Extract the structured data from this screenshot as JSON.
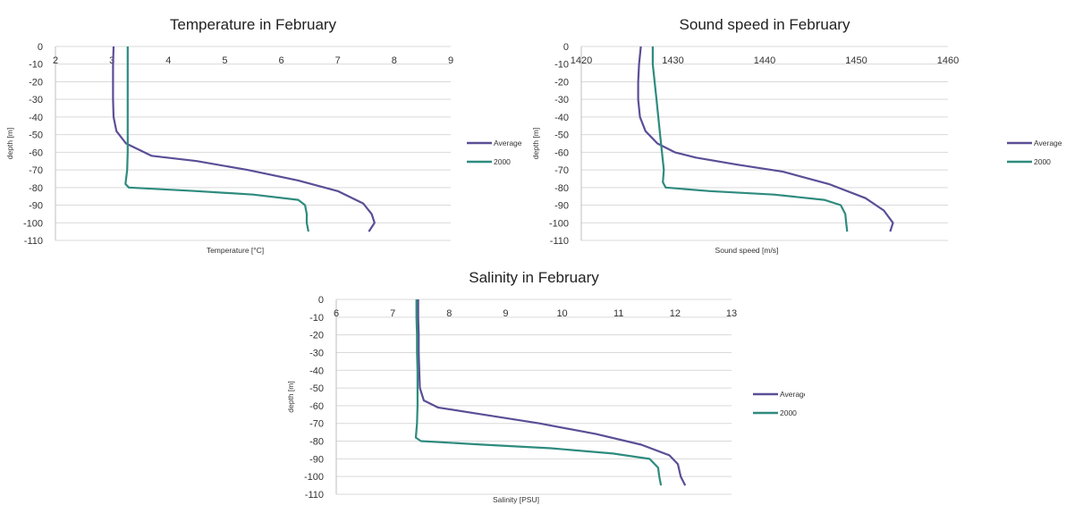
{
  "colors": {
    "average": "#5b4e96",
    "y2000": "#2e8b7e",
    "grid": "#d9d9d9"
  },
  "chart_data": [
    {
      "type": "line",
      "title": "Temperature in February",
      "xlabel": "Temperature [°C]",
      "ylabel": "depth [m]",
      "xlim": [
        2,
        9
      ],
      "ylim": [
        -110,
        0
      ],
      "xticks": [
        "2",
        "3",
        "4",
        "5",
        "6",
        "7",
        "8",
        "9"
      ],
      "yticks": [
        "0",
        "-10",
        "-20",
        "-30",
        "-40",
        "-50",
        "-60",
        "-70",
        "-80",
        "-90",
        "-100",
        "-110"
      ],
      "legend": "right",
      "series": [
        {
          "name": "Average",
          "color": "#5b4e96",
          "points": [
            [
              3.03,
              0
            ],
            [
              3.02,
              -10
            ],
            [
              3.02,
              -20
            ],
            [
              3.02,
              -30
            ],
            [
              3.03,
              -40
            ],
            [
              3.08,
              -48
            ],
            [
              3.25,
              -55
            ],
            [
              3.7,
              -62
            ],
            [
              4.5,
              -65
            ],
            [
              5.4,
              -70
            ],
            [
              6.3,
              -76
            ],
            [
              7.0,
              -82
            ],
            [
              7.45,
              -89
            ],
            [
              7.6,
              -95
            ],
            [
              7.65,
              -100
            ],
            [
              7.55,
              -105
            ]
          ]
        },
        {
          "name": "2000",
          "color": "#2e8b7e",
          "points": [
            [
              3.28,
              0
            ],
            [
              3.28,
              -10
            ],
            [
              3.28,
              -20
            ],
            [
              3.28,
              -30
            ],
            [
              3.28,
              -40
            ],
            [
              3.28,
              -50
            ],
            [
              3.28,
              -60
            ],
            [
              3.27,
              -70
            ],
            [
              3.24,
              -78
            ],
            [
              3.3,
              -80
            ],
            [
              4.5,
              -82
            ],
            [
              5.5,
              -84
            ],
            [
              6.3,
              -87
            ],
            [
              6.42,
              -90
            ],
            [
              6.45,
              -95
            ],
            [
              6.45,
              -100
            ],
            [
              6.48,
              -105
            ]
          ]
        }
      ]
    },
    {
      "type": "line",
      "title": "Sound speed in February",
      "xlabel": "Sound speed [m/s]",
      "ylabel": "depth [m]",
      "xlim": [
        1420,
        1460
      ],
      "ylim": [
        -110,
        0
      ],
      "xticks": [
        "1420",
        "1430",
        "1440",
        "1450",
        "1460"
      ],
      "yticks": [
        "0",
        "-10",
        "-20",
        "-30",
        "-40",
        "-50",
        "-60",
        "-70",
        "-80",
        "-90",
        "-100",
        "-110"
      ],
      "legend": "right",
      "series": [
        {
          "name": "Average",
          "color": "#5b4e96",
          "points": [
            [
              1426.5,
              0
            ],
            [
              1426.3,
              -10
            ],
            [
              1426.2,
              -20
            ],
            [
              1426.2,
              -30
            ],
            [
              1426.4,
              -40
            ],
            [
              1427.0,
              -48
            ],
            [
              1428.3,
              -55
            ],
            [
              1430.2,
              -60
            ],
            [
              1432.5,
              -63
            ],
            [
              1437.0,
              -67
            ],
            [
              1442.0,
              -71
            ],
            [
              1447.0,
              -78
            ],
            [
              1451.0,
              -86
            ],
            [
              1453.0,
              -93
            ],
            [
              1454.0,
              -100
            ],
            [
              1453.7,
              -105
            ]
          ]
        },
        {
          "name": "2000",
          "color": "#2e8b7e",
          "points": [
            [
              1427.8,
              0
            ],
            [
              1427.8,
              -10
            ],
            [
              1428.0,
              -20
            ],
            [
              1428.2,
              -30
            ],
            [
              1428.4,
              -40
            ],
            [
              1428.6,
              -50
            ],
            [
              1428.8,
              -60
            ],
            [
              1429.0,
              -70
            ],
            [
              1428.9,
              -77
            ],
            [
              1429.2,
              -80
            ],
            [
              1434.0,
              -82
            ],
            [
              1441.0,
              -84
            ],
            [
              1446.5,
              -87
            ],
            [
              1448.3,
              -90
            ],
            [
              1448.8,
              -95
            ],
            [
              1448.9,
              -100
            ],
            [
              1449.0,
              -105
            ]
          ]
        }
      ]
    },
    {
      "type": "line",
      "title": "Salinity in February",
      "xlabel": "Salinity [PSU]",
      "ylabel": "depth [m]",
      "xlim": [
        6,
        13
      ],
      "ylim": [
        -110,
        0
      ],
      "xticks": [
        "6",
        "7",
        "8",
        "9",
        "10",
        "11",
        "12",
        "13"
      ],
      "yticks": [
        "0",
        "-10",
        "-20",
        "-30",
        "-40",
        "-50",
        "-60",
        "-70",
        "-80",
        "-90",
        "-100",
        "-110"
      ],
      "legend": "right",
      "series": [
        {
          "name": "Average",
          "color": "#5b4e96",
          "points": [
            [
              7.45,
              0
            ],
            [
              7.45,
              -10
            ],
            [
              7.46,
              -20
            ],
            [
              7.46,
              -30
            ],
            [
              7.47,
              -40
            ],
            [
              7.48,
              -50
            ],
            [
              7.55,
              -57
            ],
            [
              7.8,
              -61
            ],
            [
              8.6,
              -65
            ],
            [
              9.6,
              -70
            ],
            [
              10.6,
              -76
            ],
            [
              11.4,
              -82
            ],
            [
              11.9,
              -88
            ],
            [
              12.05,
              -93
            ],
            [
              12.1,
              -100
            ],
            [
              12.18,
              -105
            ]
          ]
        },
        {
          "name": "2000",
          "color": "#2e8b7e",
          "points": [
            [
              7.42,
              0
            ],
            [
              7.42,
              -10
            ],
            [
              7.43,
              -20
            ],
            [
              7.43,
              -30
            ],
            [
              7.44,
              -40
            ],
            [
              7.44,
              -50
            ],
            [
              7.44,
              -60
            ],
            [
              7.43,
              -70
            ],
            [
              7.41,
              -78
            ],
            [
              7.5,
              -80
            ],
            [
              8.6,
              -82
            ],
            [
              9.8,
              -84
            ],
            [
              10.9,
              -87
            ],
            [
              11.55,
              -90
            ],
            [
              11.7,
              -95
            ],
            [
              11.72,
              -100
            ],
            [
              11.75,
              -105
            ]
          ]
        }
      ]
    }
  ]
}
